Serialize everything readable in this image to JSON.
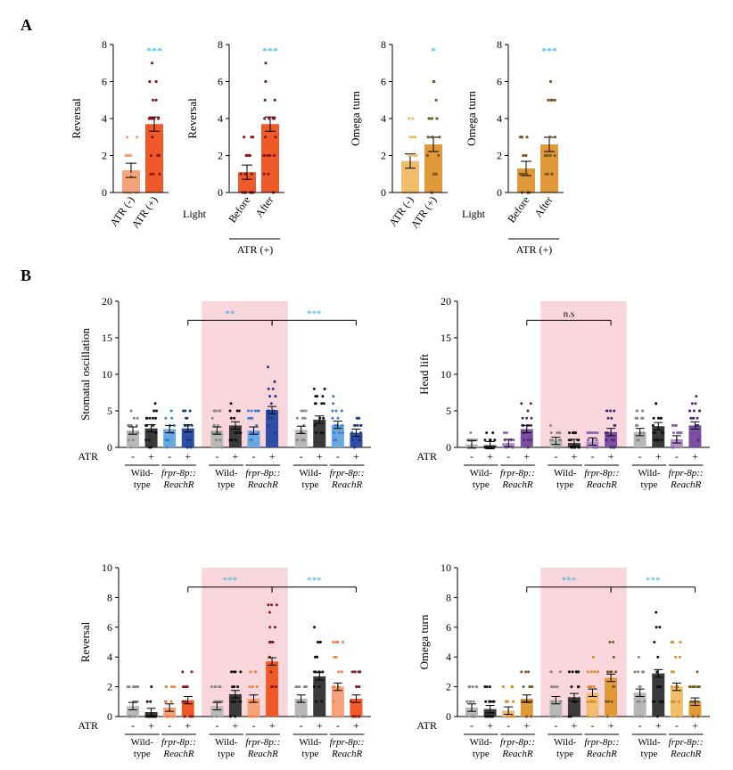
{
  "figure": {
    "panel_a_label": "A",
    "panel_b_label": "B",
    "atr_label": "ATR",
    "atr_minus": "-",
    "atr_plus": "+",
    "light_label": "Light",
    "atr_plus_group": "ATR (+)",
    "genotype_labels": [
      {
        "line1": "Wild-",
        "line2": "type",
        "italic": false
      },
      {
        "line1": "frpr-8p::",
        "line2": "ReachR",
        "italic": true
      }
    ]
  },
  "colors": {
    "shade": "#f9d6dc",
    "sig": "#29abe2",
    "reversal_light": "#f5a27a",
    "reversal_dark": "#f05a28",
    "omega_light": "#f1be6e",
    "omega_dark": "#e09a3a",
    "gray": "#b8b8b8",
    "black": "#3a3a3a",
    "blue_light": "#6aa8e0",
    "blue_dark": "#2e4fa3",
    "purple_light": "#b28fc9",
    "purple_dark": "#7b4fa0",
    "dot_dark": "#8b1a1a",
    "dot_brown": "#7a5a20"
  },
  "chart_data": [
    {
      "id": "A1",
      "type": "bar",
      "ylabel": "Reversal",
      "ylim": [
        0,
        8
      ],
      "yticks": [
        0,
        2,
        4,
        6,
        8
      ],
      "categories": [
        "ATR (-)",
        "ATR (+)"
      ],
      "values": [
        1.2,
        3.7
      ],
      "sig": [
        {
          "between": [
            0,
            1
          ],
          "label": "***"
        }
      ]
    },
    {
      "id": "A2",
      "type": "bar",
      "ylabel": "Reversal",
      "ylim": [
        0,
        8
      ],
      "yticks": [
        0,
        2,
        4,
        6,
        8
      ],
      "categories": [
        "Before",
        "After"
      ],
      "values": [
        1.1,
        3.7
      ],
      "sig": [
        {
          "between": [
            0,
            1
          ],
          "label": "***"
        }
      ]
    },
    {
      "id": "A3",
      "type": "bar",
      "ylabel": "Omega turn",
      "ylim": [
        0,
        8
      ],
      "yticks": [
        0,
        2,
        4,
        6,
        8
      ],
      "categories": [
        "ATR (-)",
        "ATR (+)"
      ],
      "values": [
        1.7,
        2.6
      ],
      "sig": [
        {
          "between": [
            0,
            1
          ],
          "label": "*"
        }
      ]
    },
    {
      "id": "A4",
      "type": "bar",
      "ylabel": "Omega turn",
      "ylim": [
        0,
        8
      ],
      "yticks": [
        0,
        2,
        4,
        6,
        8
      ],
      "categories": [
        "Before",
        "After"
      ],
      "values": [
        1.3,
        2.6
      ],
      "sig": [
        {
          "between": [
            0,
            1
          ],
          "label": "***"
        }
      ]
    },
    {
      "id": "B1",
      "type": "bar",
      "ylabel": "Stomatal oscillation",
      "ylim": [
        0,
        20
      ],
      "yticks": [
        0,
        5,
        10,
        15,
        20
      ],
      "categories": [
        "-",
        "+",
        "-",
        "+",
        "-",
        "+",
        "-",
        "+",
        "-",
        "+",
        "-",
        "+"
      ],
      "values": [
        2.3,
        2.6,
        2.5,
        2.6,
        2.3,
        3.0,
        2.3,
        5.1,
        2.4,
        3.8,
        3.1,
        2.0
      ],
      "sig": [
        {
          "between": [
            3,
            7
          ],
          "label": "**"
        },
        {
          "between": [
            7,
            11
          ],
          "label": "***"
        }
      ]
    },
    {
      "id": "B2",
      "type": "bar",
      "ylabel": "Head lift",
      "ylim": [
        0,
        20
      ],
      "yticks": [
        0,
        5,
        10,
        15,
        20
      ],
      "categories": [
        "-",
        "+",
        "-",
        "+",
        "-",
        "+",
        "-",
        "+",
        "-",
        "+",
        "-",
        "+"
      ],
      "values": [
        0.4,
        0.3,
        0.6,
        2.5,
        0.9,
        0.6,
        0.8,
        2.1,
        2.1,
        2.9,
        1.1,
        3.0
      ],
      "sig": [
        {
          "between": [
            3,
            7
          ],
          "label": "n.s"
        }
      ]
    },
    {
      "id": "B3",
      "type": "bar",
      "ylabel": "Reversal",
      "ylim": [
        0,
        10
      ],
      "yticks": [
        0,
        2,
        4,
        6,
        8,
        10
      ],
      "categories": [
        "-",
        "+",
        "-",
        "+",
        "-",
        "+",
        "-",
        "+",
        "-",
        "+",
        "-",
        "+"
      ],
      "values": [
        0.7,
        0.3,
        0.6,
        1.1,
        0.7,
        1.5,
        1.2,
        3.7,
        1.2,
        2.7,
        2.0,
        1.2
      ],
      "sig": [
        {
          "between": [
            3,
            7
          ],
          "label": "***"
        },
        {
          "between": [
            7,
            11
          ],
          "label": "***"
        }
      ]
    },
    {
      "id": "B4",
      "type": "bar",
      "ylabel": "Omega turn",
      "ylim": [
        0,
        10
      ],
      "yticks": [
        0,
        2,
        4,
        6,
        8,
        10
      ],
      "categories": [
        "-",
        "+",
        "-",
        "+",
        "-",
        "+",
        "-",
        "+",
        "-",
        "+",
        "-",
        "+"
      ],
      "values": [
        0.6,
        0.5,
        0.4,
        1.2,
        1.1,
        1.3,
        1.6,
        2.6,
        1.6,
        2.9,
        2.0,
        1.0
      ],
      "sig": [
        {
          "between": [
            3,
            7
          ],
          "label": "***"
        },
        {
          "between": [
            7,
            11
          ],
          "label": "***"
        }
      ]
    }
  ]
}
